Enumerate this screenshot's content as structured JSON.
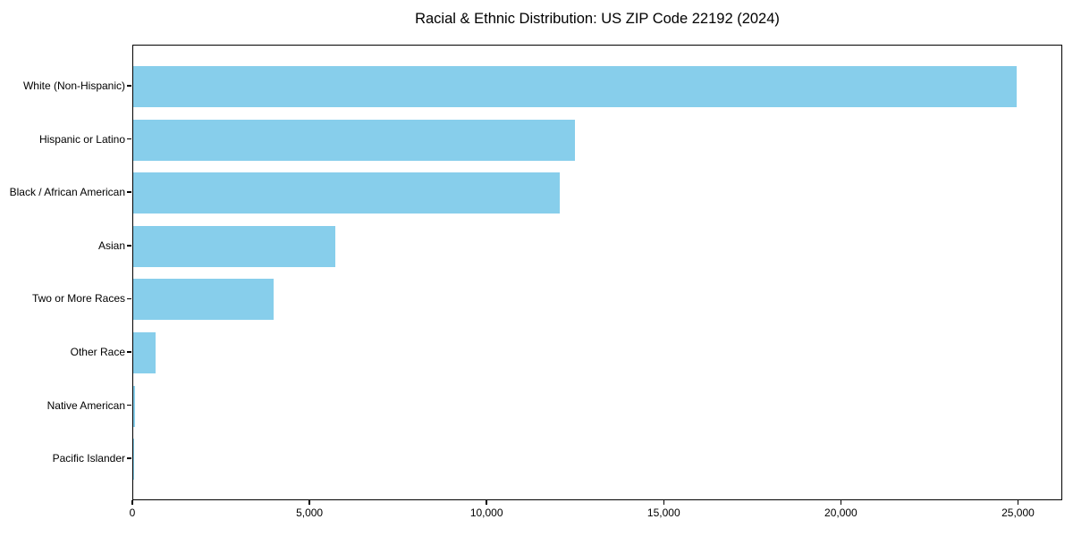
{
  "chart_data": {
    "type": "bar",
    "orientation": "horizontal",
    "title": "Racial & Ethnic Distribution: US ZIP Code 22192 (2024)",
    "categories": [
      "White (Non-Hispanic)",
      "Hispanic or Latino",
      "Black / African American",
      "Asian",
      "Two or More Races",
      "Other Race",
      "Native American",
      "Pacific Islander"
    ],
    "values": [
      24950,
      12470,
      12040,
      5700,
      3960,
      620,
      50,
      25
    ],
    "xlabel": "",
    "ylabel": "",
    "xlim": [
      0,
      26250
    ],
    "x_ticks": [
      0,
      5000,
      10000,
      15000,
      20000,
      25000
    ],
    "x_tick_labels": [
      "0",
      "5,000",
      "10,000",
      "15,000",
      "20,000",
      "25,000"
    ],
    "grid": false,
    "legend": null,
    "bar_color": "#87CEEB"
  },
  "colors": {
    "bar": "#87CEEB",
    "axis": "#000000",
    "text": "#000000",
    "background": "#FFFFFF"
  }
}
